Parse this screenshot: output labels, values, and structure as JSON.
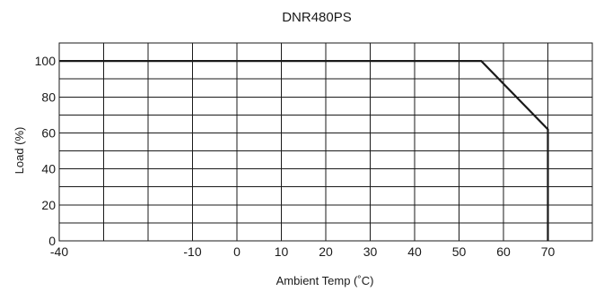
{
  "chart_data": {
    "type": "line",
    "title": "DNR480PS",
    "xlabel": "Ambient Temp (˚C)",
    "ylabel": "Load (%)",
    "xlim": [
      -40,
      80
    ],
    "ylim": [
      0,
      110
    ],
    "x_ticks": [
      -40,
      -10,
      0,
      10,
      20,
      30,
      40,
      50,
      60,
      70
    ],
    "y_ticks": [
      0,
      20,
      40,
      60,
      80,
      100
    ],
    "x_grid": [
      -40,
      -30,
      -20,
      -10,
      0,
      10,
      20,
      30,
      40,
      50,
      60,
      70,
      80
    ],
    "y_grid": [
      0,
      10,
      20,
      30,
      40,
      50,
      60,
      70,
      80,
      90,
      100,
      110
    ],
    "grid": true,
    "series": [
      {
        "x": [
          -40,
          55,
          70,
          70
        ],
        "y": [
          100,
          100,
          62,
          0
        ]
      }
    ]
  }
}
